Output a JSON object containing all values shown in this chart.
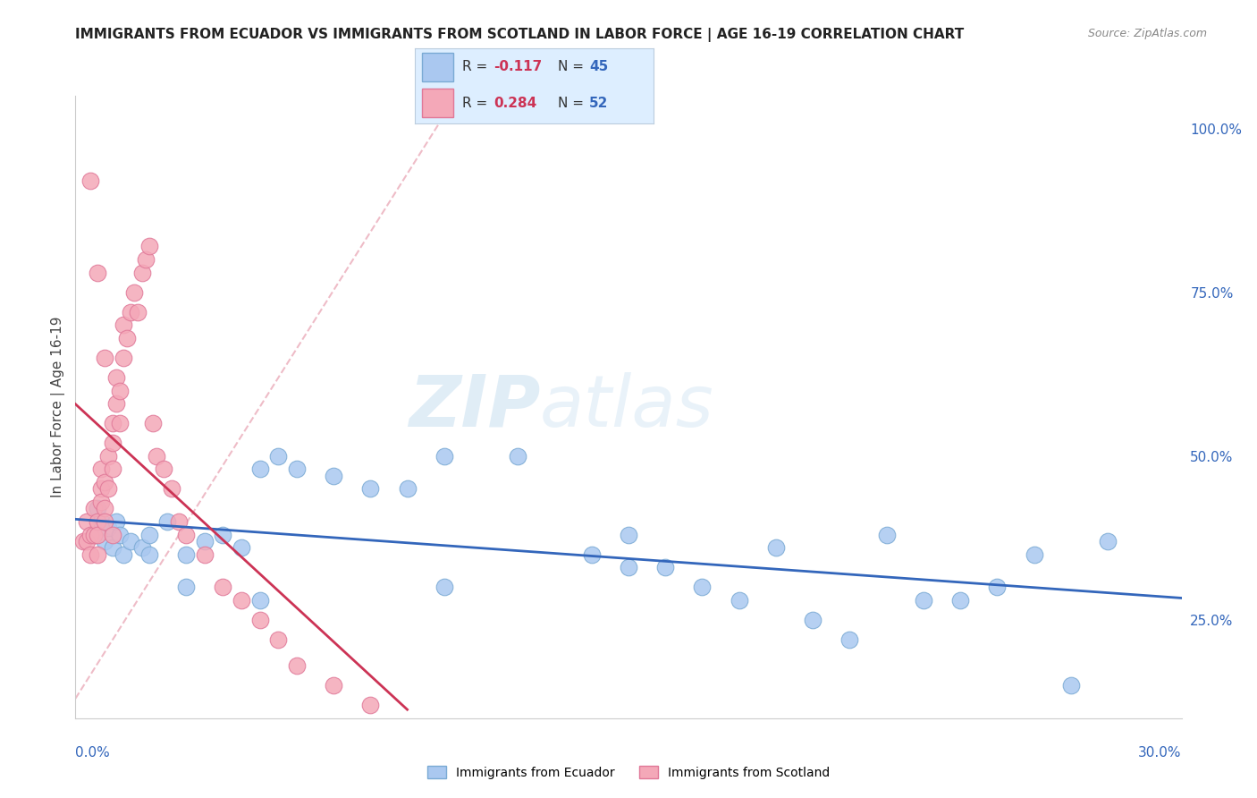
{
  "title": "IMMIGRANTS FROM ECUADOR VS IMMIGRANTS FROM SCOTLAND IN LABOR FORCE | AGE 16-19 CORRELATION CHART",
  "source": "Source: ZipAtlas.com",
  "ylabel": "In Labor Force | Age 16-19",
  "y_ticks": [
    0.25,
    0.5,
    0.75,
    1.0
  ],
  "y_tick_labels": [
    "25.0%",
    "50.0%",
    "75.0%",
    "100.0%"
  ],
  "x_range": [
    0.0,
    0.3
  ],
  "y_range": [
    0.1,
    1.05
  ],
  "ecuador_color": "#aac8f0",
  "ecuador_edge": "#7aaad4",
  "scotland_color": "#f4a8b8",
  "scotland_edge": "#e07898",
  "trend_ecuador_color": "#3366bb",
  "trend_scotland_color": "#cc3355",
  "diag_color": "#e8a0b0",
  "watermark_zip": "ZIP",
  "watermark_atlas": "atlas",
  "watermark_zip_color": "#c8ddf0",
  "watermark_atlas_color": "#c8ddf0",
  "legend_box_facecolor": "#ddeeff",
  "legend_r_label_color": "#cc3355",
  "legend_n_label_color": "#3366bb",
  "ecuador_scatter_x": [
    0.005,
    0.006,
    0.007,
    0.008,
    0.009,
    0.01,
    0.011,
    0.012,
    0.013,
    0.015,
    0.018,
    0.02,
    0.025,
    0.03,
    0.035,
    0.04,
    0.045,
    0.05,
    0.055,
    0.06,
    0.07,
    0.08,
    0.09,
    0.1,
    0.12,
    0.14,
    0.15,
    0.16,
    0.17,
    0.18,
    0.19,
    0.2,
    0.21,
    0.22,
    0.23,
    0.24,
    0.25,
    0.26,
    0.27,
    0.28,
    0.15,
    0.1,
    0.05,
    0.03,
    0.02
  ],
  "ecuador_scatter_y": [
    0.38,
    0.42,
    0.4,
    0.37,
    0.39,
    0.36,
    0.4,
    0.38,
    0.35,
    0.37,
    0.36,
    0.38,
    0.4,
    0.35,
    0.37,
    0.38,
    0.36,
    0.48,
    0.5,
    0.48,
    0.47,
    0.45,
    0.45,
    0.5,
    0.5,
    0.35,
    0.38,
    0.33,
    0.3,
    0.28,
    0.36,
    0.25,
    0.22,
    0.38,
    0.28,
    0.28,
    0.3,
    0.35,
    0.15,
    0.37,
    0.33,
    0.3,
    0.28,
    0.3,
    0.35
  ],
  "scotland_scatter_x": [
    0.002,
    0.003,
    0.003,
    0.004,
    0.004,
    0.005,
    0.005,
    0.006,
    0.006,
    0.006,
    0.007,
    0.007,
    0.007,
    0.008,
    0.008,
    0.008,
    0.009,
    0.009,
    0.01,
    0.01,
    0.01,
    0.011,
    0.011,
    0.012,
    0.012,
    0.013,
    0.013,
    0.014,
    0.015,
    0.016,
    0.017,
    0.018,
    0.019,
    0.02,
    0.021,
    0.022,
    0.024,
    0.026,
    0.028,
    0.03,
    0.035,
    0.04,
    0.045,
    0.05,
    0.055,
    0.06,
    0.07,
    0.08,
    0.004,
    0.006,
    0.008,
    0.01
  ],
  "scotland_scatter_y": [
    0.37,
    0.4,
    0.37,
    0.38,
    0.35,
    0.42,
    0.38,
    0.4,
    0.35,
    0.38,
    0.45,
    0.48,
    0.43,
    0.46,
    0.42,
    0.4,
    0.5,
    0.45,
    0.55,
    0.48,
    0.52,
    0.58,
    0.62,
    0.6,
    0.55,
    0.65,
    0.7,
    0.68,
    0.72,
    0.75,
    0.72,
    0.78,
    0.8,
    0.82,
    0.55,
    0.5,
    0.48,
    0.45,
    0.4,
    0.38,
    0.35,
    0.3,
    0.28,
    0.25,
    0.22,
    0.18,
    0.15,
    0.12,
    0.92,
    0.78,
    0.65,
    0.38
  ]
}
